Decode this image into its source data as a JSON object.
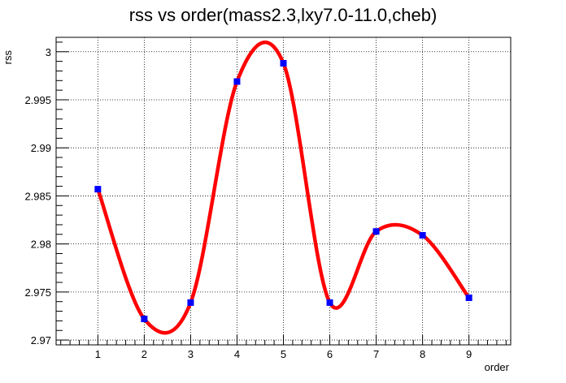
{
  "chart_data": {
    "type": "scatter",
    "title": "rss vs order(mass2.3,lxy7.0-11.0,cheb)",
    "xlabel": "order",
    "ylabel": "rss",
    "xlim": [
      0.1,
      9.9
    ],
    "ylim": [
      2.9695,
      3.0015
    ],
    "grid": true,
    "x_ticks": [
      1,
      2,
      3,
      4,
      5,
      6,
      7,
      8,
      9
    ],
    "y_ticks": [
      2.97,
      2.975,
      2.98,
      2.985,
      2.99,
      2.995,
      3.0
    ],
    "y_tick_labels": [
      "2.97",
      "2.975",
      "2.98",
      "2.985",
      "2.99",
      "2.995",
      "3"
    ],
    "series": [
      {
        "x": [
          1,
          2,
          3,
          4,
          5,
          6,
          7,
          8,
          9
        ],
        "values": [
          2.9857,
          2.9722,
          2.9739,
          2.9969,
          2.9988,
          2.9739,
          2.9813,
          2.9809,
          2.9744
        ],
        "marker": "square",
        "color": "#0000ff",
        "curve": "smooth",
        "curve_color": "#ff0000"
      }
    ]
  }
}
